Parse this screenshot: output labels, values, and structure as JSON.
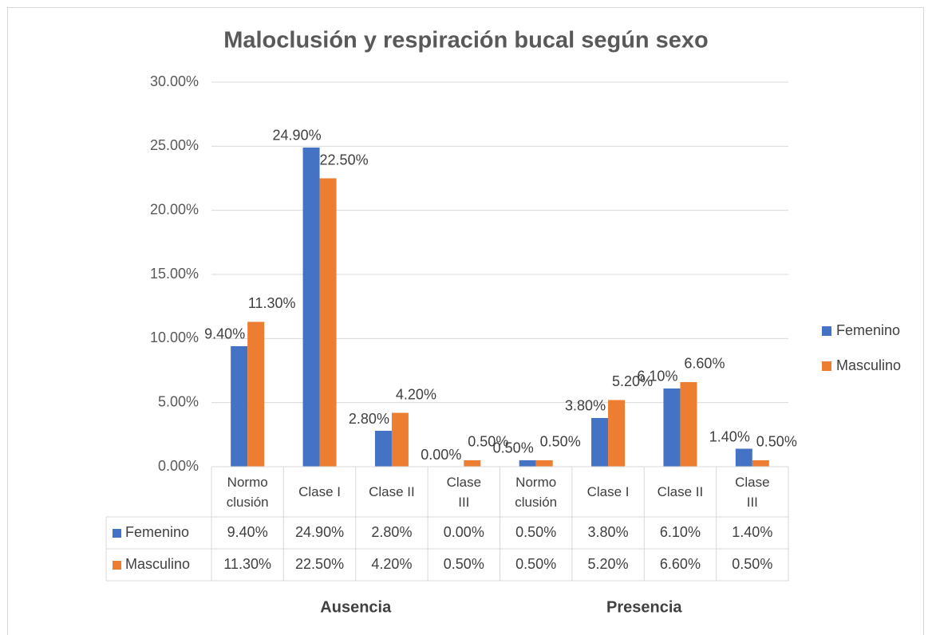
{
  "chart_data": {
    "type": "bar",
    "title": "Maloclusión  y respiración bucal según sexo",
    "categories": [
      "Normo clusión",
      "Clase I",
      "Clase II",
      "Clase III",
      "Normo clusión",
      "Clase I",
      "Clase II",
      "Clase III"
    ],
    "category_groups": [
      "Ausencia",
      "Presencia"
    ],
    "series": [
      {
        "name": "Femenino",
        "color": "#4472c4",
        "values": [
          9.4,
          24.9,
          2.8,
          0.0,
          0.5,
          3.8,
          6.1,
          1.4
        ],
        "value_labels": [
          "9.40%",
          "24.90%",
          "2.80%",
          "0.00%",
          "0.50%",
          "3.80%",
          "6.10%",
          "1.40%"
        ]
      },
      {
        "name": "Masculino",
        "color": "#ed7d31",
        "values": [
          11.3,
          22.5,
          4.2,
          0.5,
          0.5,
          5.2,
          6.6,
          0.5
        ],
        "value_labels": [
          "11.30%",
          "22.50%",
          "4.20%",
          "0.50%",
          "0.50%",
          "5.20%",
          "6.60%",
          "0.50%"
        ]
      }
    ],
    "ylim": [
      0,
      30
    ],
    "yticks": [
      {
        "value": 0,
        "label": "0.00%"
      },
      {
        "value": 5,
        "label": "5.00%"
      },
      {
        "value": 10,
        "label": "10.00%"
      },
      {
        "value": 15,
        "label": "15.00%"
      },
      {
        "value": 20,
        "label": "20.00%"
      },
      {
        "value": 25,
        "label": "25.00%"
      },
      {
        "value": 30,
        "label": "30.00%"
      }
    ],
    "grid": true,
    "legend": "right",
    "data_table": true
  }
}
